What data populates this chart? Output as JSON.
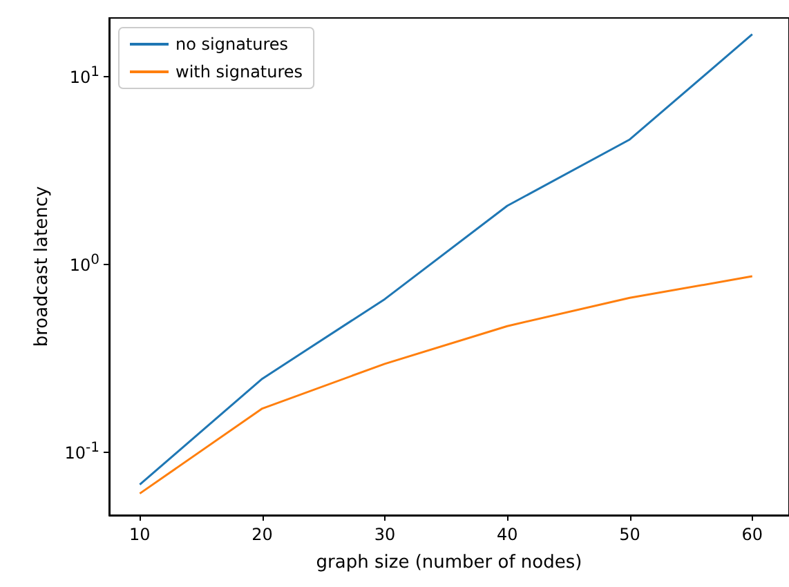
{
  "chart_data": {
    "type": "line",
    "xlabel": "graph size (number of nodes)",
    "ylabel": "broadcast latency",
    "x": [
      10,
      20,
      30,
      40,
      50,
      60
    ],
    "series": [
      {
        "name": "no signatures",
        "color": "#1f77b4",
        "values": [
          0.067,
          0.245,
          0.65,
          2.04,
          4.6,
          16.7
        ]
      },
      {
        "name": "with signatures",
        "color": "#ff7f0e",
        "values": [
          0.06,
          0.17,
          0.294,
          0.467,
          0.66,
          0.86
        ]
      }
    ],
    "xlim": [
      7.5,
      63
    ],
    "xticks": [
      10,
      20,
      30,
      40,
      50,
      60
    ],
    "ylim": [
      0.046,
      20.4
    ],
    "yticks": [
      {
        "value": 0.1,
        "label": "10$^{-1}$"
      },
      {
        "value": 1,
        "label": "10$^{0}$"
      },
      {
        "value": 10,
        "label": "10$^{1}$"
      }
    ],
    "log": "y",
    "grid": false,
    "legend": "top left",
    "marker": "none",
    "line_style": "solid"
  }
}
